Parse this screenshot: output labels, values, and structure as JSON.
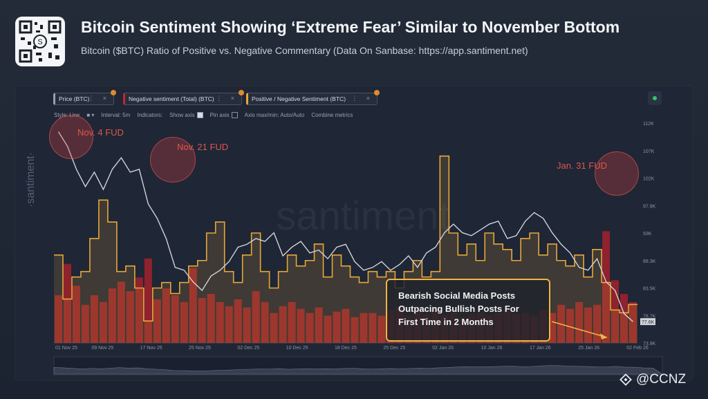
{
  "header": {
    "title": "Bitcoin Sentiment Showing ‘Extreme Fear’ Similar to November Bottom",
    "subtitle": "Bitcoin ($BTC) Ratio of Positive vs. Negative Commentary (Data On Sanbase: https://app.santiment.net)"
  },
  "metrics": [
    {
      "label": "Price (BTC)",
      "color": "#9aa0aa"
    },
    {
      "label": "Negative sentiment (Total) (BTC)",
      "color": "#c2272d"
    },
    {
      "label": "Positive / Negative Sentiment (BTC)",
      "color": "#e7a93a"
    }
  ],
  "toolbar": {
    "style": "Style: Line",
    "interval": "Interval: 5m",
    "indicators": "Indicators:",
    "show_axis": "Show axis",
    "pin_axis": "Pin axis",
    "axis_maxmin": "Axis max/min: Auto/Auto",
    "combine": "Combine metrics"
  },
  "watermark": "·santiment·",
  "annotations": {
    "nov4": "Nov. 4 FUD",
    "nov21": "Nov. 21 FUD",
    "jan31": "Jan. 31 FUD",
    "callout_line1": "Bearish Social Media Posts",
    "callout_line2": "Outpacing Bullish Posts For",
    "callout_line3": "First Time in 2 Months"
  },
  "brand": "@CCNZ",
  "chart_data": {
    "type": "line",
    "x_ticks": [
      "01 Nov 25",
      "09 Nov 25",
      "17 Nov 25",
      "25 Nov 25",
      "02 Dec 25",
      "10 Dec 25",
      "18 Dec 25",
      "25 Dec 25",
      "02 Jan 26",
      "10 Jan 26",
      "17 Jan 26",
      "25 Jan 26",
      "02 Feb 26"
    ],
    "y_ticks": [
      "112K",
      "107K",
      "102K",
      "97.8K",
      "93K",
      "88.3K",
      "83.5K",
      "78.7K",
      "73.9K"
    ],
    "ylim": [
      73900,
      112000
    ],
    "current_price_label": "77.6K",
    "series": [
      {
        "name": "Price (BTC)",
        "values": [
          110500,
          108000,
          104000,
          101000,
          103500,
          100500,
          104000,
          106000,
          103500,
          104000,
          98000,
          95500,
          92000,
          87000,
          86500,
          84500,
          83000,
          85500,
          86500,
          88000,
          90500,
          91000,
          92000,
          91500,
          93000,
          89000,
          90500,
          91500,
          89500,
          90000,
          88500,
          90500,
          91000,
          88000,
          86500,
          87000,
          88000,
          86500,
          87500,
          89000,
          87000,
          89500,
          90500,
          93000,
          94500,
          93000,
          92500,
          93500,
          94500,
          95000,
          92000,
          92500,
          95000,
          96500,
          95500,
          93000,
          91000,
          89500,
          87000,
          86500,
          88500,
          84500,
          83000,
          79000,
          77600
        ]
      },
      {
        "name": "Negative sentiment (Total) (BTC)",
        "values": [
          0.35,
          0.58,
          0.42,
          0.28,
          0.35,
          0.3,
          0.4,
          0.45,
          0.38,
          0.48,
          0.62,
          0.32,
          0.4,
          0.35,
          0.3,
          0.55,
          0.33,
          0.36,
          0.3,
          0.27,
          0.32,
          0.26,
          0.38,
          0.3,
          0.22,
          0.27,
          0.3,
          0.25,
          0.22,
          0.26,
          0.2,
          0.23,
          0.25,
          0.19,
          0.22,
          0.22,
          0.2,
          0.24,
          0.26,
          0.2,
          0.24,
          0.21,
          0.25,
          0.2,
          0.22,
          0.19,
          0.21,
          0.22,
          0.2,
          0.22,
          0.24,
          0.21,
          0.22,
          0.2,
          0.24,
          0.22,
          0.28,
          0.25,
          0.3,
          0.26,
          0.28,
          0.82,
          0.46,
          0.36,
          0.3
        ]
      },
      {
        "name": "Positive / Negative Sentiment (BTC)",
        "values": [
          1.6,
          0.8,
          1.2,
          1.3,
          1.9,
          2.6,
          2.2,
          1.3,
          1.4,
          1.0,
          0.4,
          1.0,
          1.1,
          0.9,
          1.1,
          1.4,
          1.5,
          2.0,
          2.2,
          1.3,
          1.1,
          1.6,
          2.0,
          1.3,
          1.0,
          1.3,
          1.6,
          1.4,
          1.5,
          1.8,
          1.2,
          1.6,
          1.4,
          1.2,
          1.1,
          1.3,
          1.2,
          1.3,
          1.0,
          1.3,
          1.5,
          1.2,
          1.3,
          3.4,
          2.0,
          1.6,
          1.8,
          1.5,
          2.0,
          1.8,
          1.7,
          1.5,
          1.9,
          2.0,
          1.6,
          1.8,
          1.5,
          1.4,
          1.6,
          1.2,
          1.7,
          1.1,
          0.6,
          0.55,
          0.7
        ]
      }
    ]
  }
}
